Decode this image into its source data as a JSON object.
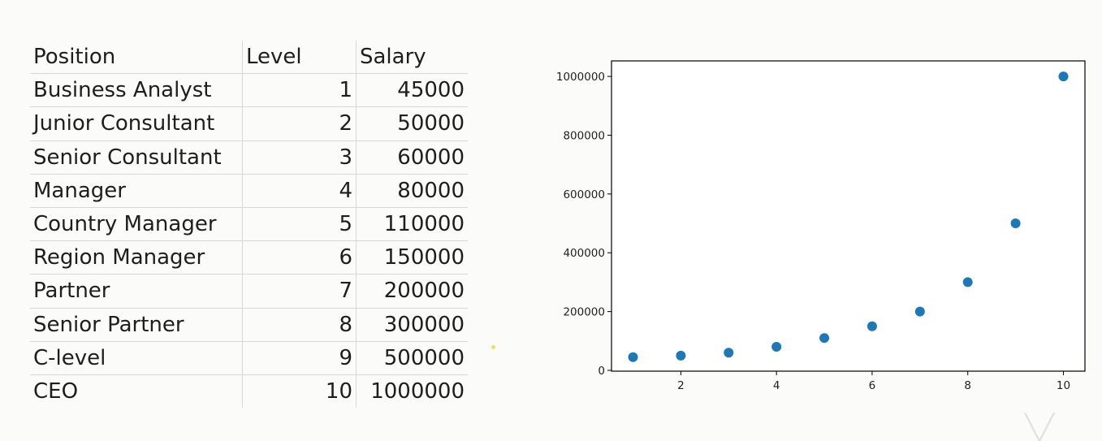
{
  "table": {
    "headers": [
      "Position",
      "Level",
      "Salary"
    ],
    "rows": [
      [
        "Business Analyst",
        "1",
        "45000"
      ],
      [
        "Junior Consultant",
        "2",
        "50000"
      ],
      [
        "Senior Consultant",
        "3",
        "60000"
      ],
      [
        "Manager",
        "4",
        "80000"
      ],
      [
        "Country Manager",
        "5",
        "110000"
      ],
      [
        "Region Manager",
        "6",
        "150000"
      ],
      [
        "Partner",
        "7",
        "200000"
      ],
      [
        "Senior Partner",
        "8",
        "300000"
      ],
      [
        "C-level",
        "9",
        "500000"
      ],
      [
        "CEO",
        "10",
        "1000000"
      ]
    ]
  },
  "chart_data": {
    "type": "scatter",
    "x": [
      1,
      2,
      3,
      4,
      5,
      6,
      7,
      8,
      9,
      10
    ],
    "y": [
      45000,
      50000,
      60000,
      80000,
      110000,
      150000,
      200000,
      300000,
      500000,
      1000000
    ],
    "xticks": [
      2,
      4,
      6,
      8,
      10
    ],
    "yticks": [
      0,
      200000,
      400000,
      600000,
      800000,
      1000000
    ],
    "xlim": [
      0.55,
      10.45
    ],
    "ylim": [
      -2750,
      1052750
    ],
    "title": "",
    "xlabel": "",
    "ylabel": "",
    "grid": false,
    "marker_color": "#1f77b4"
  }
}
